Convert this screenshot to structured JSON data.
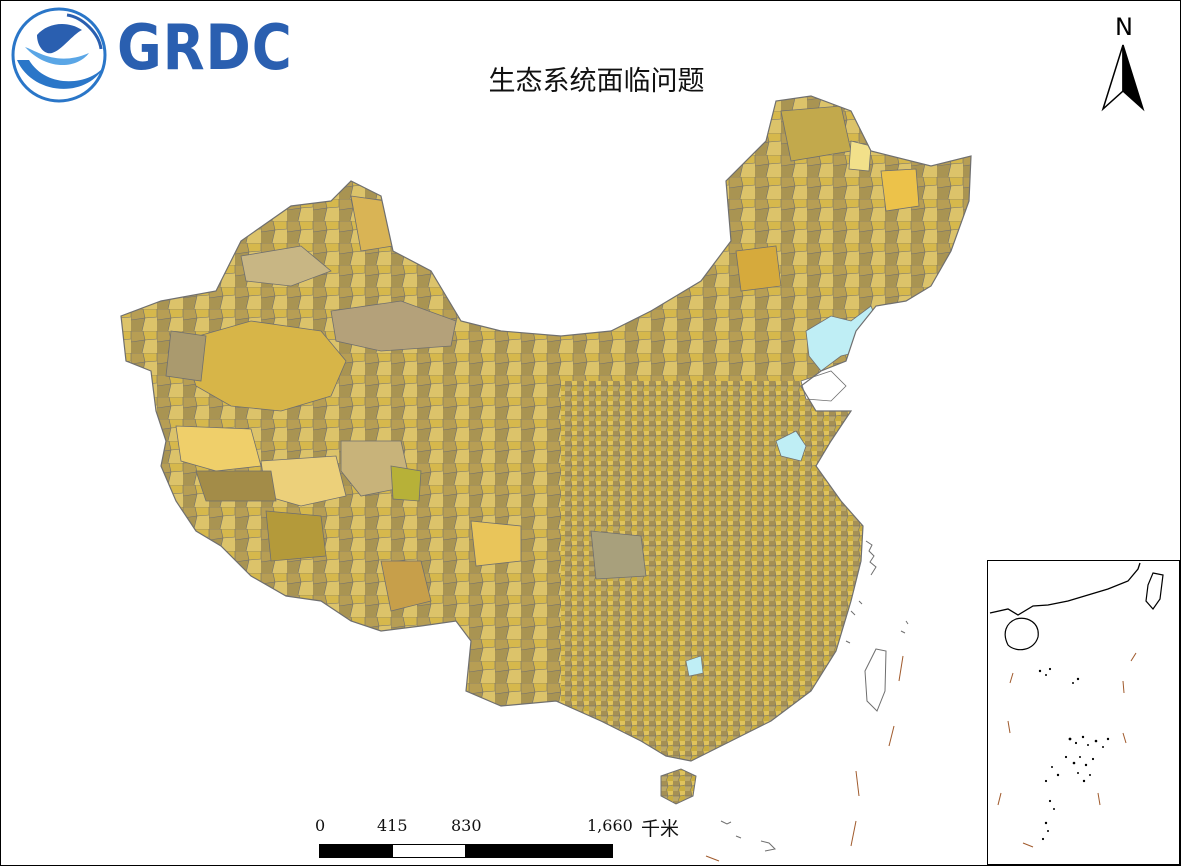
{
  "logo": {
    "text": "GRDC"
  },
  "title": "生态系统面临问题",
  "north_arrow": {
    "label": "N"
  },
  "scale_bar": {
    "ticks": [
      "0",
      "415",
      "830",
      "1,660"
    ],
    "unit": "千米"
  },
  "colors": {
    "region_palette": [
      "#c9a93a",
      "#b8a05a",
      "#d4b24a",
      "#a8944e",
      "#e0c15a",
      "#bfae74",
      "#9c8a4c",
      "#d9c270",
      "#c7b152",
      "#b39a3c",
      "#e6cf6e",
      "#a89a66"
    ],
    "lake": "#bfeef5",
    "boundary": "#6f6f6f",
    "logo_blue": "#2a5fb0"
  }
}
